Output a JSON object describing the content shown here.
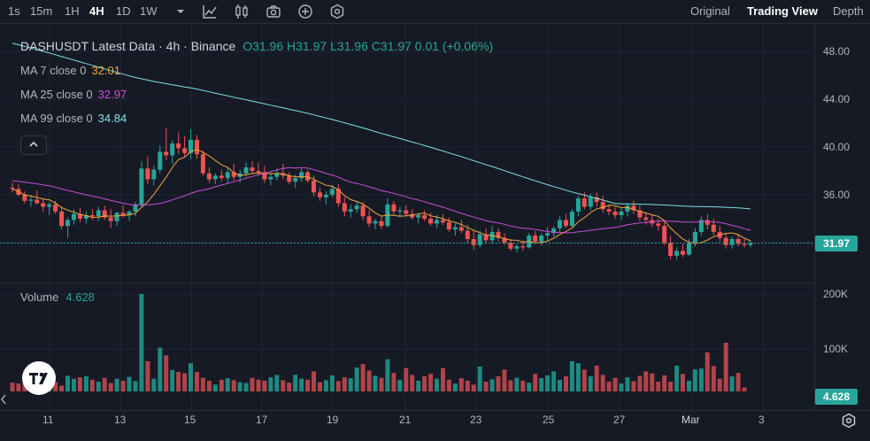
{
  "toolbar": {
    "intervals": [
      {
        "label": "1s",
        "active": false
      },
      {
        "label": "15m",
        "active": false
      },
      {
        "label": "1H",
        "active": false
      },
      {
        "label": "4H",
        "active": true
      },
      {
        "label": "1D",
        "active": false
      },
      {
        "label": "1W",
        "active": false
      }
    ],
    "icons": [
      "chevron-down-icon",
      "indicators-icon",
      "candle-style-icon",
      "camera-icon",
      "plus-circle-icon",
      "settings-hex-icon"
    ],
    "views": [
      {
        "label": "Original",
        "active": false
      },
      {
        "label": "Trading View",
        "active": true
      },
      {
        "label": "Depth",
        "active": false
      }
    ]
  },
  "legend": {
    "title": "DASHUSDT Latest Data · 4h · Binance",
    "ohlc": "O31.96  H31.97  L31.96  C31.97  0.01 (+0.06%)",
    "ma": [
      {
        "label": "MA 7 close 0",
        "value": "32.01",
        "color": "#f0a540"
      },
      {
        "label": "MA 25 close 0",
        "value": "32.97",
        "color": "#c850d6"
      },
      {
        "label": "MA 99 close 0",
        "value": "34.84",
        "color": "#7fe0e6"
      }
    ],
    "collapse": "^"
  },
  "volume": {
    "label": "Volume",
    "value": "4.628"
  },
  "price_axis": {
    "ticks": [
      "48.00",
      "44.00",
      "40.00",
      "36.00"
    ],
    "current": "31.97",
    "current_color": "#26a69a"
  },
  "volume_axis": {
    "ticks": [
      "200K",
      "100K"
    ],
    "current": "4.628"
  },
  "time_axis": [
    "11",
    "13",
    "15",
    "17",
    "19",
    "21",
    "23",
    "25",
    "27",
    "Mar",
    "3"
  ],
  "colors": {
    "up": "#26a69a",
    "down": "#ef5350",
    "up_vol": "#1e8a80",
    "down_vol": "#b2434a"
  },
  "chart_data": {
    "type": "candlestick",
    "symbol": "DASHUSDT",
    "interval": "4h",
    "ylim": [
      29.5,
      49.5
    ],
    "candles": [
      [
        36.6,
        37.0,
        36.2,
        36.5
      ],
      [
        36.5,
        36.9,
        35.9,
        36.0
      ],
      [
        36.0,
        36.3,
        35.3,
        35.5
      ],
      [
        35.5,
        36.0,
        35.0,
        35.6
      ],
      [
        35.6,
        36.4,
        35.2,
        35.3
      ],
      [
        35.3,
        35.7,
        34.6,
        35.0
      ],
      [
        35.0,
        35.4,
        34.3,
        35.2
      ],
      [
        35.2,
        35.5,
        34.4,
        34.6
      ],
      [
        34.6,
        35.0,
        33.1,
        33.4
      ],
      [
        33.4,
        34.1,
        32.4,
        33.9
      ],
      [
        33.9,
        34.8,
        33.5,
        34.4
      ],
      [
        34.4,
        34.9,
        33.7,
        34.0
      ],
      [
        34.0,
        34.6,
        33.6,
        34.3
      ],
      [
        34.3,
        34.8,
        33.9,
        34.2
      ],
      [
        34.2,
        35.0,
        33.8,
        34.7
      ],
      [
        34.7,
        35.1,
        33.9,
        34.1
      ],
      [
        34.1,
        34.8,
        33.2,
        33.8
      ],
      [
        33.8,
        34.6,
        33.4,
        34.5
      ],
      [
        34.5,
        35.1,
        34.1,
        34.3
      ],
      [
        34.3,
        34.7,
        33.8,
        34.6
      ],
      [
        34.6,
        35.4,
        34.2,
        35.2
      ],
      [
        35.2,
        38.8,
        35.0,
        38.2
      ],
      [
        38.2,
        39.2,
        36.9,
        37.3
      ],
      [
        37.3,
        38.4,
        36.8,
        38.1
      ],
      [
        38.1,
        40.1,
        37.8,
        39.6
      ],
      [
        39.6,
        41.6,
        38.9,
        39.3
      ],
      [
        39.3,
        40.6,
        38.6,
        40.3
      ],
      [
        40.3,
        41.2,
        39.4,
        39.9
      ],
      [
        39.9,
        40.9,
        39.2,
        39.5
      ],
      [
        39.5,
        41.5,
        39.0,
        40.6
      ],
      [
        40.6,
        41.0,
        39.0,
        39.4
      ],
      [
        39.4,
        39.7,
        37.6,
        37.8
      ],
      [
        37.8,
        38.3,
        37.0,
        37.3
      ],
      [
        37.3,
        37.8,
        36.9,
        37.6
      ],
      [
        37.6,
        38.1,
        37.1,
        37.4
      ],
      [
        37.4,
        38.2,
        37.0,
        37.9
      ],
      [
        37.9,
        38.6,
        37.2,
        37.5
      ],
      [
        37.5,
        38.1,
        37.0,
        37.8
      ],
      [
        37.8,
        38.7,
        37.5,
        38.3
      ],
      [
        38.3,
        38.8,
        37.7,
        38.0
      ],
      [
        38.0,
        38.7,
        37.6,
        37.9
      ],
      [
        37.9,
        38.4,
        37.0,
        37.3
      ],
      [
        37.3,
        37.9,
        36.8,
        37.5
      ],
      [
        37.5,
        38.2,
        37.2,
        37.8
      ],
      [
        37.8,
        38.6,
        37.3,
        37.6
      ],
      [
        37.6,
        37.9,
        36.9,
        37.1
      ],
      [
        37.1,
        37.7,
        36.6,
        37.4
      ],
      [
        37.4,
        38.2,
        37.1,
        37.9
      ],
      [
        37.9,
        38.1,
        37.0,
        37.2
      ],
      [
        37.2,
        37.6,
        35.9,
        36.2
      ],
      [
        36.2,
        36.6,
        35.5,
        35.8
      ],
      [
        35.8,
        36.3,
        35.2,
        36.0
      ],
      [
        36.0,
        36.8,
        35.8,
        36.5
      ],
      [
        36.5,
        36.9,
        35.0,
        35.3
      ],
      [
        35.3,
        35.8,
        34.2,
        34.6
      ],
      [
        34.6,
        35.2,
        34.1,
        34.8
      ],
      [
        34.8,
        35.5,
        34.5,
        35.1
      ],
      [
        35.1,
        35.4,
        33.9,
        34.2
      ],
      [
        34.2,
        34.7,
        33.3,
        33.6
      ],
      [
        33.6,
        34.0,
        33.1,
        33.8
      ],
      [
        33.8,
        34.2,
        33.1,
        33.4
      ],
      [
        33.4,
        35.7,
        33.3,
        35.2
      ],
      [
        35.2,
        35.5,
        34.3,
        34.6
      ],
      [
        34.6,
        35.0,
        34.1,
        34.7
      ],
      [
        34.7,
        35.1,
        34.2,
        34.4
      ],
      [
        34.4,
        34.8,
        33.9,
        34.1
      ],
      [
        34.1,
        34.5,
        33.6,
        34.3
      ],
      [
        34.3,
        34.7,
        33.8,
        34.0
      ],
      [
        34.0,
        34.5,
        33.4,
        33.6
      ],
      [
        33.6,
        34.3,
        33.2,
        33.9
      ],
      [
        33.9,
        34.4,
        33.5,
        33.7
      ],
      [
        33.7,
        34.1,
        32.9,
        33.1
      ],
      [
        33.1,
        33.6,
        32.6,
        33.3
      ],
      [
        33.3,
        33.9,
        32.8,
        33.0
      ],
      [
        33.0,
        33.5,
        32.0,
        32.3
      ],
      [
        32.3,
        33.1,
        31.4,
        31.8
      ],
      [
        31.8,
        33.0,
        31.6,
        32.7
      ],
      [
        32.7,
        33.2,
        31.9,
        32.2
      ],
      [
        32.2,
        33.4,
        31.9,
        32.9
      ],
      [
        32.9,
        33.2,
        32.1,
        32.4
      ],
      [
        32.4,
        32.8,
        31.8,
        32.0
      ],
      [
        32.0,
        32.3,
        31.3,
        31.5
      ],
      [
        31.5,
        31.9,
        31.2,
        31.7
      ],
      [
        31.7,
        32.2,
        31.3,
        31.6
      ],
      [
        31.6,
        32.8,
        31.5,
        32.6
      ],
      [
        32.6,
        33.0,
        31.9,
        32.1
      ],
      [
        32.1,
        32.8,
        31.8,
        32.6
      ],
      [
        32.6,
        33.3,
        32.2,
        32.8
      ],
      [
        32.8,
        33.4,
        32.5,
        33.2
      ],
      [
        33.2,
        34.2,
        32.9,
        33.9
      ],
      [
        33.9,
        34.4,
        33.2,
        33.4
      ],
      [
        33.4,
        34.8,
        33.3,
        34.6
      ],
      [
        34.6,
        35.9,
        34.2,
        35.7
      ],
      [
        35.7,
        36.2,
        34.8,
        35.0
      ],
      [
        35.0,
        36.1,
        34.7,
        35.8
      ],
      [
        35.8,
        36.2,
        35.0,
        35.4
      ],
      [
        35.4,
        35.9,
        34.5,
        34.8
      ],
      [
        34.8,
        35.2,
        34.3,
        34.6
      ],
      [
        34.6,
        35.0,
        34.0,
        34.3
      ],
      [
        34.3,
        34.9,
        33.9,
        34.6
      ],
      [
        34.6,
        35.3,
        34.2,
        35.1
      ],
      [
        35.1,
        35.5,
        34.4,
        34.7
      ],
      [
        34.7,
        35.1,
        33.8,
        34.1
      ],
      [
        34.1,
        34.5,
        33.5,
        33.9
      ],
      [
        33.9,
        34.3,
        33.3,
        33.6
      ],
      [
        33.6,
        34.0,
        33.0,
        33.4
      ],
      [
        33.4,
        33.9,
        31.8,
        32.0
      ],
      [
        32.0,
        32.6,
        30.6,
        30.9
      ],
      [
        30.9,
        31.6,
        30.6,
        31.3
      ],
      [
        31.3,
        31.9,
        30.8,
        31.0
      ],
      [
        31.0,
        32.3,
        30.9,
        32.0
      ],
      [
        32.0,
        33.2,
        31.7,
        32.9
      ],
      [
        32.9,
        34.2,
        32.6,
        33.9
      ],
      [
        33.9,
        34.4,
        33.1,
        33.5
      ],
      [
        33.5,
        34.0,
        32.6,
        32.9
      ],
      [
        32.9,
        33.4,
        32.1,
        32.4
      ],
      [
        32.4,
        32.8,
        31.5,
        31.8
      ],
      [
        31.8,
        32.5,
        31.5,
        32.3
      ],
      [
        32.3,
        32.7,
        31.7,
        31.9
      ],
      [
        31.9,
        32.3,
        31.6,
        31.8
      ],
      [
        31.8,
        32.2,
        31.6,
        31.96
      ]
    ],
    "volumes": [
      18,
      16,
      17,
      14,
      22,
      20,
      15,
      19,
      12,
      32,
      26,
      29,
      31,
      24,
      20,
      28,
      17,
      26,
      22,
      30,
      21,
      200,
      62,
      26,
      90,
      74,
      44,
      40,
      37,
      58,
      40,
      28,
      22,
      14,
      24,
      27,
      23,
      19,
      17,
      28,
      24,
      22,
      29,
      34,
      23,
      18,
      34,
      26,
      24,
      41,
      19,
      23,
      33,
      21,
      29,
      27,
      49,
      56,
      43,
      32,
      28,
      66,
      38,
      24,
      48,
      34,
      22,
      31,
      36,
      26,
      48,
      24,
      16,
      27,
      22,
      14,
      51,
      20,
      25,
      31,
      45,
      23,
      28,
      22,
      18,
      36,
      27,
      33,
      41,
      24,
      31,
      62,
      58,
      45,
      31,
      53,
      34,
      20,
      28,
      16,
      29,
      21,
      32,
      41,
      37,
      20,
      33,
      20,
      53,
      36,
      22,
      45,
      47,
      80,
      52,
      26,
      100,
      31,
      38,
      8
    ]
  }
}
